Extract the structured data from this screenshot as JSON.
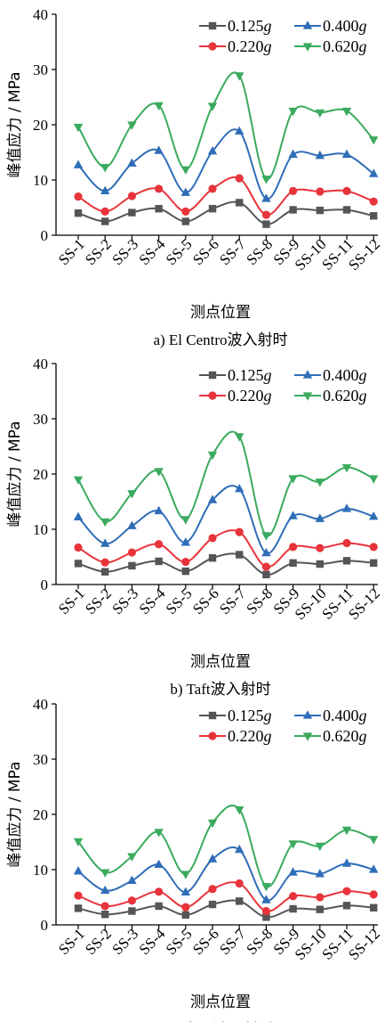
{
  "chart_data": [
    {
      "type": "line",
      "caption": "a)  El Centro波入射时",
      "xlabel": "测点位置",
      "ylabel": "峰值应力 / MPa",
      "ylim": [
        0,
        40
      ],
      "yticks": [
        0,
        10,
        20,
        30,
        40
      ],
      "categories": [
        "SS-1",
        "SS-2",
        "SS-3",
        "SS-4",
        "SS-5",
        "SS-6",
        "SS-7",
        "SS-8",
        "SS-9",
        "SS-10",
        "SS-11",
        "SS-12"
      ],
      "series": [
        {
          "name": "0.125g",
          "color": "#555555",
          "marker": "square",
          "values": [
            4.0,
            2.5,
            4.1,
            4.8,
            2.5,
            4.8,
            5.9,
            2.0,
            4.6,
            4.5,
            4.6,
            3.5
          ]
        },
        {
          "name": "0.220g",
          "color": "#e8333a",
          "marker": "circle",
          "values": [
            7.0,
            4.3,
            7.1,
            8.4,
            4.3,
            8.4,
            10.3,
            3.7,
            8.0,
            7.9,
            8.0,
            6.1
          ]
        },
        {
          "name": "0.400g",
          "color": "#2f6db8",
          "marker": "triangle-up",
          "values": [
            12.7,
            8.0,
            13.0,
            15.3,
            7.7,
            15.2,
            18.8,
            6.6,
            14.6,
            14.4,
            14.6,
            11.1
          ]
        },
        {
          "name": "0.620g",
          "color": "#3aaa5e",
          "marker": "triangle-down",
          "values": [
            19.6,
            12.3,
            20.0,
            23.5,
            11.9,
            23.4,
            28.9,
            10.2,
            22.5,
            22.2,
            22.5,
            17.3
          ]
        }
      ],
      "legend": "top-right"
    },
    {
      "type": "line",
      "caption": "b)  Taft波入射时",
      "xlabel": "测点位置",
      "ylabel": "峰值应力 / MPa",
      "ylim": [
        0,
        40
      ],
      "yticks": [
        0,
        10,
        20,
        30,
        40
      ],
      "categories": [
        "SS-1",
        "SS-2",
        "SS-3",
        "SS-4",
        "SS-5",
        "SS-6",
        "SS-7",
        "SS-8",
        "SS-9",
        "SS-10",
        "SS-11",
        "SS-12"
      ],
      "series": [
        {
          "name": "0.125g",
          "color": "#555555",
          "marker": "square",
          "values": [
            3.8,
            2.3,
            3.4,
            4.2,
            2.4,
            4.8,
            5.4,
            1.8,
            3.9,
            3.7,
            4.3,
            3.9
          ]
        },
        {
          "name": "0.220g",
          "color": "#e8333a",
          "marker": "circle",
          "values": [
            6.7,
            4.0,
            5.8,
            7.3,
            4.1,
            8.4,
            9.5,
            3.2,
            6.8,
            6.6,
            7.5,
            6.8
          ]
        },
        {
          "name": "0.400g",
          "color": "#2f6db8",
          "marker": "triangle-up",
          "values": [
            12.2,
            7.4,
            10.6,
            13.3,
            7.6,
            15.3,
            17.3,
            5.7,
            12.4,
            11.9,
            13.7,
            12.3
          ]
        },
        {
          "name": "0.620g",
          "color": "#3aaa5e",
          "marker": "triangle-down",
          "values": [
            19.0,
            11.4,
            16.5,
            20.5,
            11.8,
            23.5,
            26.8,
            8.9,
            19.2,
            18.6,
            21.2,
            19.2
          ]
        }
      ],
      "legend": "top-right"
    },
    {
      "type": "line",
      "caption": "c)  人工波入射时",
      "xlabel": "测点位置",
      "ylabel": "峰值应力 / MPa",
      "ylim": [
        0,
        40
      ],
      "yticks": [
        0,
        10,
        20,
        30,
        40
      ],
      "categories": [
        "SS-1",
        "SS-2",
        "SS-3",
        "SS-4",
        "SS-5",
        "SS-6",
        "SS-7",
        "SS-8",
        "SS-9",
        "SS-10",
        "SS-11",
        "SS-12"
      ],
      "series": [
        {
          "name": "0.125g",
          "color": "#555555",
          "marker": "square",
          "values": [
            3.0,
            1.9,
            2.5,
            3.4,
            1.8,
            3.7,
            4.3,
            1.4,
            2.9,
            2.8,
            3.5,
            3.1
          ]
        },
        {
          "name": "0.220g",
          "color": "#e8333a",
          "marker": "circle",
          "values": [
            5.3,
            3.4,
            4.4,
            6.0,
            3.2,
            6.5,
            7.5,
            2.5,
            5.2,
            5.0,
            6.1,
            5.5
          ]
        },
        {
          "name": "0.400g",
          "color": "#2f6db8",
          "marker": "triangle-up",
          "values": [
            9.7,
            6.2,
            8.0,
            10.9,
            5.9,
            11.9,
            13.6,
            4.5,
            9.5,
            9.2,
            11.1,
            10.0
          ]
        },
        {
          "name": "0.620g",
          "color": "#3aaa5e",
          "marker": "triangle-down",
          "values": [
            15.1,
            9.5,
            12.4,
            16.8,
            9.2,
            18.5,
            20.9,
            7.0,
            14.7,
            14.3,
            17.2,
            15.5
          ]
        }
      ],
      "legend": "top-right"
    }
  ]
}
